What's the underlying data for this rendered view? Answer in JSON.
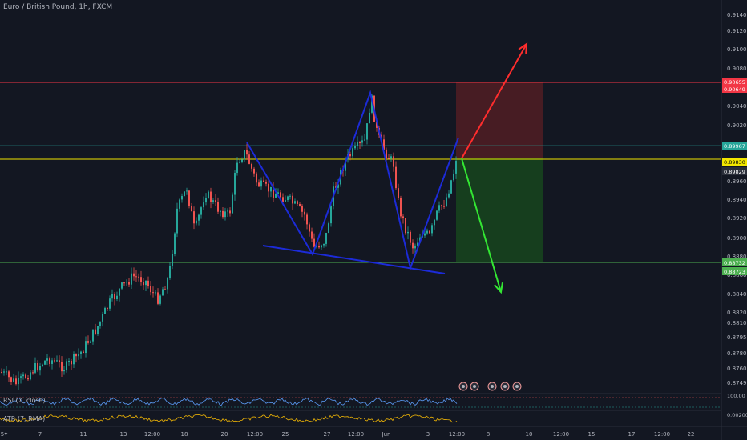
{
  "header": {
    "title": "Euro / British Pound, 1h, FXCM"
  },
  "indicators": {
    "rsi_label": "RSI (7, close)",
    "atr_label": "ATR (7, RMA)",
    "rsi_value": "100.00",
    "atr_value": "0.00200"
  },
  "price_axis": {
    "ticks": [
      "0.91400",
      "0.91200",
      "0.91000",
      "0.90800",
      "0.90400",
      "0.90200",
      "0.89600",
      "0.89400",
      "0.89200",
      "0.89000",
      "0.88800",
      "0.88600",
      "0.88400",
      "0.88200",
      "0.88100",
      "0.87950",
      "0.87800",
      "0.87600",
      "0.87490"
    ],
    "badges": [
      {
        "label": "0.90655",
        "color": "#f23645"
      },
      {
        "label": "0.90649",
        "color": "#f23645"
      },
      {
        "label": "0.89967",
        "color": "#26a69a"
      },
      {
        "label": "0.89830",
        "color": "#f2e600"
      },
      {
        "label": "0.89829",
        "color": "#2a2e39"
      },
      {
        "label": "0.88732",
        "color": "#4caf50"
      },
      {
        "label": "0.88723",
        "color": "#4caf50"
      }
    ]
  },
  "time_axis": {
    "ticks": [
      "5",
      "7",
      "11",
      "13",
      "12:00",
      "18",
      "20",
      "12:00",
      "25",
      "27",
      "12:00",
      "Jun",
      "3",
      "12:00",
      "8",
      "10",
      "12:00",
      "15",
      "17",
      "12:00",
      "22"
    ]
  },
  "colors": {
    "background": "#131722",
    "stop_zone": "#4a1c24",
    "target_zone": "#16401f",
    "red_line": "#f23645",
    "yellow_line": "#f2e600",
    "green_line": "#4caf50",
    "pattern": "#1c2bd8",
    "up_candle": "#26a69a",
    "down_candle": "#ef5350"
  },
  "icons": [
    "calendar-icon",
    "news-icon",
    "flag-icon",
    "news-icon",
    "flag-icon"
  ]
}
